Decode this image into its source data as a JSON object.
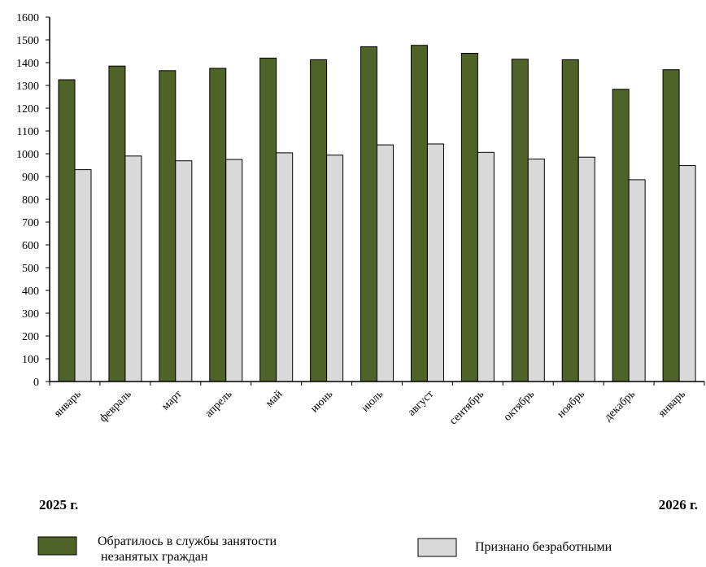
{
  "chart_data": {
    "type": "bar",
    "categories": [
      "январь",
      "февраль",
      "март",
      "апрель",
      "май",
      "июнь",
      "июль",
      "август",
      "сентябрь",
      "октябрь",
      "ноябрь",
      "декабрь",
      "январь"
    ],
    "series": [
      {
        "name": "Обратилось в службы занятости незанятых граждан",
        "name_lines": [
          "Обратилось в службы занятости",
          "незанятых граждан"
        ],
        "color": "#4f6228",
        "values": [
          1325,
          1385,
          1365,
          1375,
          1420,
          1413,
          1470,
          1476,
          1441,
          1415,
          1413,
          1283,
          1369
        ]
      },
      {
        "name": "Признано безработными",
        "name_lines": [
          "Признано безработными"
        ],
        "color": "#d9d9d9",
        "values": [
          930,
          990,
          969,
          975,
          1004,
          994,
          1039,
          1043,
          1006,
          977,
          985,
          886,
          948
        ]
      }
    ],
    "ylim": [
      0,
      1600
    ],
    "yticks": [
      0,
      100,
      200,
      300,
      400,
      500,
      600,
      700,
      800,
      900,
      1000,
      1100,
      1200,
      1300,
      1400,
      1500,
      1600
    ],
    "grid": false,
    "legend_position": "bottom",
    "year_labels": [
      "2025 г.",
      "2026 г."
    ]
  }
}
